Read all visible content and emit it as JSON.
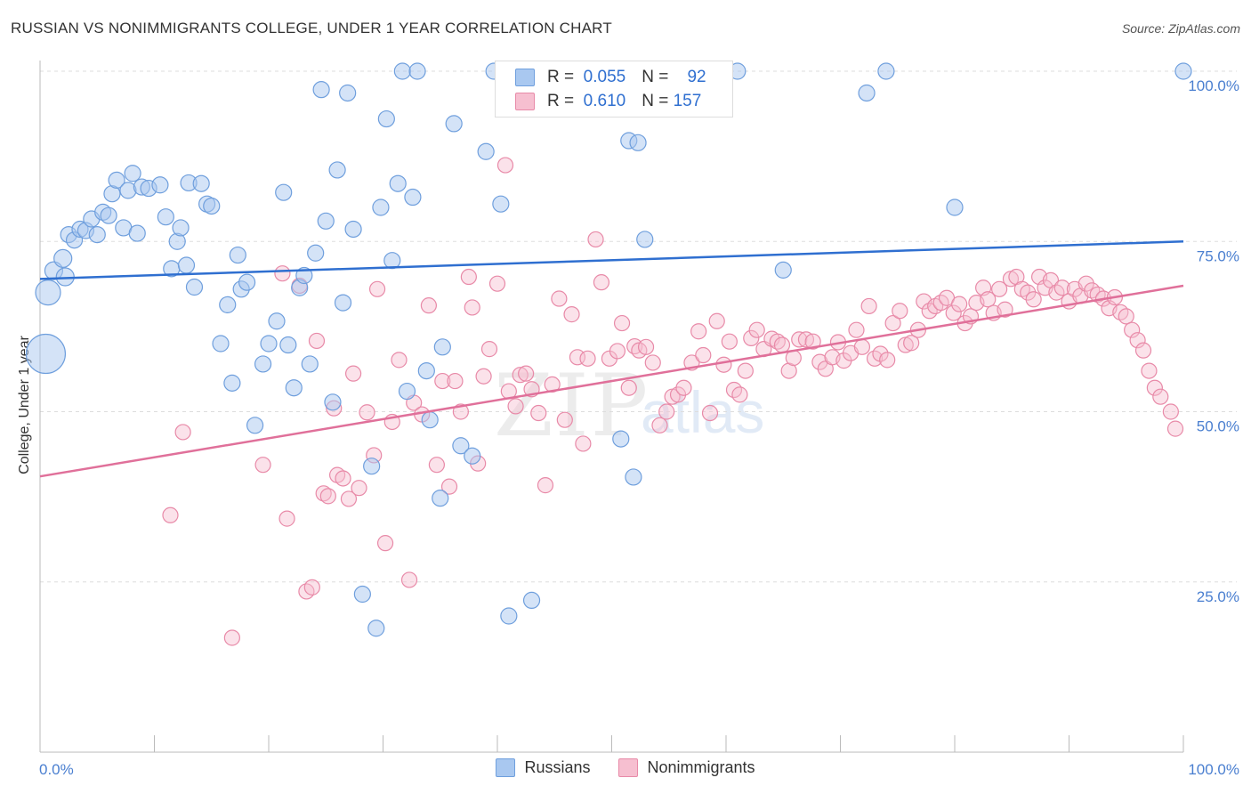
{
  "title": "RUSSIAN VS NONIMMIGRANTS COLLEGE, UNDER 1 YEAR CORRELATION CHART",
  "source": "Source: ZipAtlas.com",
  "watermark": {
    "zip": "ZIP",
    "atlas": "atlas"
  },
  "legend_top": {
    "rows": [
      {
        "r_label": "R =",
        "r_value": "0.055",
        "n_label": "N =",
        "n_value": "92"
      },
      {
        "r_label": "R =",
        "r_value": "0.610",
        "n_label": "N =",
        "n_value": "157"
      }
    ]
  },
  "legend_bottom": [
    {
      "label": "Russians"
    },
    {
      "label": "Nonimmigrants"
    }
  ],
  "colors": {
    "russians_fill": "#a9c8f0",
    "russians_stroke": "#6f9fdd",
    "russians_line": "#2f6fd0",
    "nonimm_fill": "#f6bfd0",
    "nonimm_stroke": "#e88aa8",
    "nonimm_line": "#e0709a",
    "axis_label": "#4a7fd0",
    "grid": "#dddddd"
  },
  "chart_data": {
    "type": "scatter",
    "title": "RUSSIAN VS NONIMMIGRANTS COLLEGE, UNDER 1 YEAR CORRELATION CHART",
    "xlabel": "",
    "ylabel": "College, Under 1 year",
    "xlim": [
      0,
      100
    ],
    "ylim": [
      0,
      100
    ],
    "x_tick_labels": [
      "0.0%",
      "100.0%"
    ],
    "y_ticks": [
      25,
      50,
      75,
      100
    ],
    "y_tick_labels": [
      "25.0%",
      "50.0%",
      "75.0%",
      "100.0%"
    ],
    "series": [
      {
        "name": "Russians",
        "trend": {
          "x": [
            0,
            100
          ],
          "y": [
            69.5,
            75.0
          ]
        },
        "points": [
          [
            0.5,
            58.5,
            22
          ],
          [
            0.7,
            67.5,
            14
          ],
          [
            1.2,
            70.7,
            10
          ],
          [
            2.0,
            72.5,
            10
          ],
          [
            2.2,
            69.8,
            10
          ],
          [
            2.5,
            76.0,
            9
          ],
          [
            3.0,
            75.2,
            9
          ],
          [
            3.5,
            76.8,
            9
          ],
          [
            4.0,
            76.6,
            9
          ],
          [
            4.5,
            78.3,
            9
          ],
          [
            5.0,
            76.0,
            9
          ],
          [
            5.5,
            79.3,
            9
          ],
          [
            6.0,
            78.8,
            9
          ],
          [
            6.3,
            82.0,
            9
          ],
          [
            6.7,
            84.0,
            9
          ],
          [
            7.3,
            77.0,
            9
          ],
          [
            7.7,
            82.5,
            9
          ],
          [
            8.1,
            85.0,
            9
          ],
          [
            8.5,
            76.2,
            9
          ],
          [
            8.9,
            83.0,
            9
          ],
          [
            9.5,
            82.8,
            9
          ],
          [
            10.5,
            83.3,
            9
          ],
          [
            11.0,
            78.6,
            9
          ],
          [
            11.5,
            71.0,
            9
          ],
          [
            12.0,
            75.0,
            9
          ],
          [
            12.3,
            77.0,
            9
          ],
          [
            12.8,
            71.5,
            9
          ],
          [
            13.0,
            83.6,
            9
          ],
          [
            13.5,
            68.3,
            9
          ],
          [
            14.1,
            83.5,
            9
          ],
          [
            14.6,
            80.5,
            9
          ],
          [
            15.0,
            80.2,
            9
          ],
          [
            15.8,
            60.0,
            9
          ],
          [
            16.4,
            65.7,
            9
          ],
          [
            16.8,
            54.2,
            9
          ],
          [
            17.3,
            73.0,
            9
          ],
          [
            17.6,
            68.0,
            9
          ],
          [
            18.1,
            69.0,
            9
          ],
          [
            18.8,
            48.0,
            9
          ],
          [
            19.5,
            57.0,
            9
          ],
          [
            20.0,
            60.0,
            9
          ],
          [
            20.7,
            63.3,
            9
          ],
          [
            21.3,
            82.2,
            9
          ],
          [
            21.7,
            59.8,
            9
          ],
          [
            22.2,
            53.5,
            9
          ],
          [
            22.7,
            68.2,
            9
          ],
          [
            23.1,
            70.0,
            9
          ],
          [
            23.6,
            57.0,
            9
          ],
          [
            24.1,
            73.3,
            9
          ],
          [
            24.6,
            97.3,
            9
          ],
          [
            25.0,
            78.0,
            9
          ],
          [
            25.6,
            51.4,
            9
          ],
          [
            26.0,
            85.5,
            9
          ],
          [
            26.5,
            66.0,
            9
          ],
          [
            26.9,
            96.8,
            9
          ],
          [
            27.4,
            76.8,
            9
          ],
          [
            28.2,
            23.2,
            9
          ],
          [
            29.0,
            42.0,
            9
          ],
          [
            29.4,
            18.2,
            9
          ],
          [
            29.8,
            80.0,
            9
          ],
          [
            30.3,
            93.0,
            9
          ],
          [
            30.8,
            72.2,
            9
          ],
          [
            31.3,
            83.5,
            9
          ],
          [
            31.7,
            100.0,
            9
          ],
          [
            32.1,
            53.0,
            9
          ],
          [
            32.6,
            81.5,
            9
          ],
          [
            33.0,
            100.0,
            9
          ],
          [
            33.8,
            56.0,
            9
          ],
          [
            34.1,
            48.8,
            9
          ],
          [
            35.0,
            37.3,
            9
          ],
          [
            35.2,
            59.5,
            9
          ],
          [
            36.2,
            92.3,
            9
          ],
          [
            36.8,
            45.0,
            9
          ],
          [
            37.8,
            43.5,
            9
          ],
          [
            39.0,
            88.2,
            9
          ],
          [
            39.7,
            100.0,
            9
          ],
          [
            40.3,
            80.5,
            9
          ],
          [
            41.0,
            20.0,
            9
          ],
          [
            43.0,
            22.3,
            9
          ],
          [
            50.0,
            100.0,
            9
          ],
          [
            50.8,
            46.0,
            9
          ],
          [
            51.5,
            89.8,
            9
          ],
          [
            51.9,
            40.4,
            9
          ],
          [
            52.3,
            89.5,
            9
          ],
          [
            52.9,
            75.3,
            9
          ],
          [
            59.5,
            100.0,
            9
          ],
          [
            61.0,
            100.0,
            9
          ],
          [
            65.0,
            70.8,
            9
          ],
          [
            72.3,
            96.8,
            9
          ],
          [
            74.0,
            100.0,
            9
          ],
          [
            80.0,
            80.0,
            9
          ],
          [
            100.0,
            100.0,
            9
          ]
        ]
      },
      {
        "name": "Nonimmigrants",
        "trend": {
          "x": [
            0,
            100
          ],
          "y": [
            40.5,
            68.5
          ]
        },
        "points": [
          [
            11.4,
            34.8
          ],
          [
            12.5,
            47.0
          ],
          [
            16.8,
            16.8
          ],
          [
            19.5,
            42.2
          ],
          [
            21.2,
            70.3
          ],
          [
            21.6,
            34.3
          ],
          [
            22.7,
            68.5
          ],
          [
            23.3,
            23.6
          ],
          [
            23.8,
            24.2
          ],
          [
            24.2,
            60.4
          ],
          [
            24.8,
            38.0
          ],
          [
            25.2,
            37.6
          ],
          [
            25.7,
            50.5
          ],
          [
            26.0,
            40.7
          ],
          [
            26.5,
            40.2
          ],
          [
            27.0,
            37.2
          ],
          [
            27.4,
            55.6
          ],
          [
            27.9,
            38.8
          ],
          [
            28.6,
            49.9
          ],
          [
            29.2,
            43.6
          ],
          [
            29.5,
            68.0
          ],
          [
            30.2,
            30.7
          ],
          [
            30.8,
            48.5
          ],
          [
            31.4,
            57.6
          ],
          [
            32.3,
            25.3
          ],
          [
            32.7,
            51.3
          ],
          [
            33.4,
            49.6
          ],
          [
            34.0,
            65.6
          ],
          [
            34.7,
            42.2
          ],
          [
            35.2,
            54.5
          ],
          [
            35.8,
            39.0
          ],
          [
            36.3,
            54.5
          ],
          [
            36.8,
            50.0
          ],
          [
            37.5,
            69.8
          ],
          [
            37.8,
            65.3
          ],
          [
            38.3,
            42.4
          ],
          [
            38.8,
            55.2
          ],
          [
            39.3,
            59.2
          ],
          [
            40.0,
            68.8
          ],
          [
            40.7,
            86.2
          ],
          [
            41.0,
            53.0
          ],
          [
            41.6,
            50.8
          ],
          [
            42.0,
            55.4
          ],
          [
            42.5,
            55.6
          ],
          [
            43.0,
            53.3
          ],
          [
            43.6,
            49.8
          ],
          [
            44.2,
            39.2
          ],
          [
            44.8,
            54.0
          ],
          [
            45.4,
            66.6
          ],
          [
            45.9,
            48.8
          ],
          [
            46.5,
            64.3
          ],
          [
            47.0,
            58.0
          ],
          [
            47.5,
            45.3
          ],
          [
            47.9,
            57.8
          ],
          [
            48.6,
            75.3
          ],
          [
            49.1,
            69.0
          ],
          [
            49.8,
            57.8
          ],
          [
            50.5,
            58.9
          ],
          [
            50.9,
            63.0
          ],
          [
            51.5,
            53.5
          ],
          [
            52.0,
            59.6
          ],
          [
            52.4,
            59.0
          ],
          [
            53.0,
            59.5
          ],
          [
            53.6,
            57.2
          ],
          [
            54.2,
            48.0
          ],
          [
            54.8,
            50.0
          ],
          [
            55.3,
            52.2
          ],
          [
            55.8,
            52.5
          ],
          [
            56.3,
            53.5
          ],
          [
            57.0,
            57.2
          ],
          [
            57.6,
            61.8
          ],
          [
            58.0,
            58.3
          ],
          [
            58.6,
            49.8
          ],
          [
            59.2,
            63.3
          ],
          [
            59.8,
            56.9
          ],
          [
            60.3,
            60.3
          ],
          [
            60.7,
            53.2
          ],
          [
            61.2,
            52.5
          ],
          [
            61.7,
            56.0
          ],
          [
            62.2,
            60.8
          ],
          [
            62.7,
            62.0
          ],
          [
            63.3,
            59.2
          ],
          [
            64.0,
            60.7
          ],
          [
            64.5,
            60.3
          ],
          [
            64.9,
            59.8
          ],
          [
            65.5,
            56.0
          ],
          [
            65.9,
            57.9
          ],
          [
            66.4,
            60.6
          ],
          [
            67.0,
            60.6
          ],
          [
            67.6,
            60.3
          ],
          [
            68.2,
            57.3
          ],
          [
            68.7,
            56.3
          ],
          [
            69.3,
            58.0
          ],
          [
            69.8,
            60.2
          ],
          [
            70.3,
            57.5
          ],
          [
            70.9,
            58.6
          ],
          [
            71.4,
            62.0
          ],
          [
            71.9,
            59.5
          ],
          [
            72.5,
            65.5
          ],
          [
            73.0,
            57.8
          ],
          [
            73.5,
            58.5
          ],
          [
            74.1,
            57.6
          ],
          [
            74.6,
            63.0
          ],
          [
            75.2,
            64.8
          ],
          [
            75.7,
            59.8
          ],
          [
            76.2,
            60.1
          ],
          [
            76.8,
            62.0
          ],
          [
            77.3,
            66.2
          ],
          [
            77.8,
            64.8
          ],
          [
            78.3,
            65.5
          ],
          [
            78.8,
            66.0
          ],
          [
            79.3,
            66.7
          ],
          [
            79.9,
            64.5
          ],
          [
            80.4,
            65.8
          ],
          [
            80.9,
            63.0
          ],
          [
            81.4,
            64.0
          ],
          [
            81.9,
            66.0
          ],
          [
            82.5,
            68.2
          ],
          [
            82.9,
            66.5
          ],
          [
            83.4,
            64.5
          ],
          [
            83.9,
            68.0
          ],
          [
            84.4,
            65.0
          ],
          [
            84.9,
            69.5
          ],
          [
            85.4,
            69.8
          ],
          [
            85.9,
            68.0
          ],
          [
            86.4,
            67.5
          ],
          [
            86.9,
            66.5
          ],
          [
            87.4,
            69.8
          ],
          [
            87.9,
            68.2
          ],
          [
            88.4,
            69.3
          ],
          [
            88.9,
            67.5
          ],
          [
            89.4,
            68.2
          ],
          [
            90.0,
            66.2
          ],
          [
            90.5,
            68.0
          ],
          [
            91.0,
            67.0
          ],
          [
            91.5,
            68.8
          ],
          [
            92.0,
            67.8
          ],
          [
            92.5,
            67.2
          ],
          [
            93.0,
            66.6
          ],
          [
            93.5,
            65.2
          ],
          [
            94.0,
            66.8
          ],
          [
            94.5,
            64.6
          ],
          [
            95.0,
            64.0
          ],
          [
            95.5,
            62.0
          ],
          [
            96.0,
            60.5
          ],
          [
            96.5,
            59.0
          ],
          [
            97.0,
            56.0
          ],
          [
            97.5,
            53.5
          ],
          [
            98.0,
            52.2
          ],
          [
            99.3,
            47.5
          ],
          [
            98.9,
            50.0
          ]
        ]
      }
    ]
  }
}
